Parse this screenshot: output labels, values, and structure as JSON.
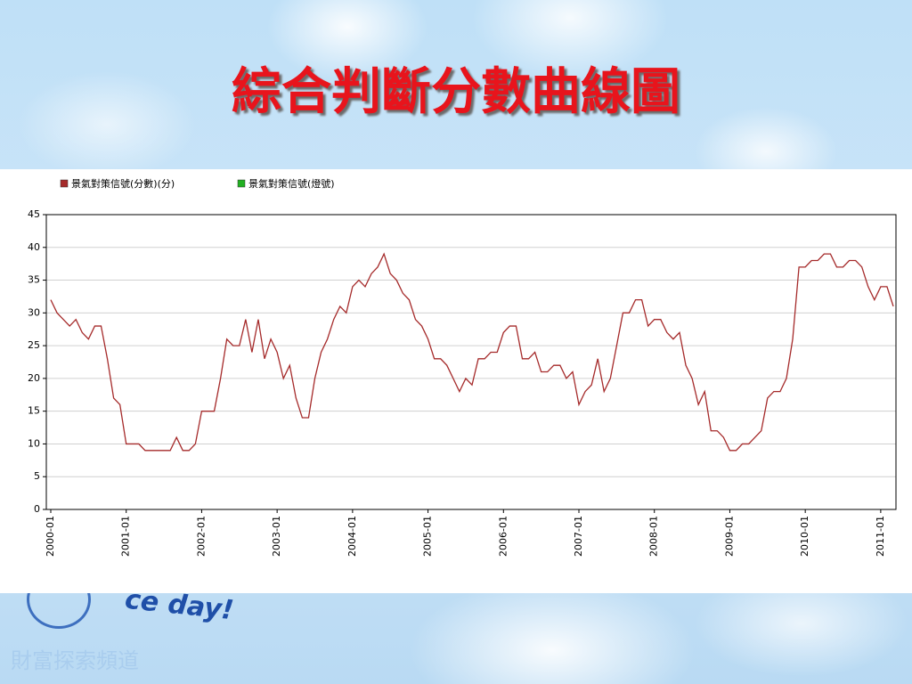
{
  "chart_data": {
    "type": "line",
    "title": "綜合判斷分數曲線圖",
    "categories": [
      "2000-01",
      null,
      null,
      null,
      null,
      null,
      null,
      null,
      null,
      null,
      null,
      null,
      "2001-01",
      null,
      null,
      null,
      null,
      null,
      null,
      null,
      null,
      null,
      null,
      null,
      "2002-01",
      null,
      null,
      null,
      null,
      null,
      null,
      null,
      null,
      null,
      null,
      null,
      "2003-01",
      null,
      null,
      null,
      null,
      null,
      null,
      null,
      null,
      null,
      null,
      null,
      "2004-01",
      null,
      null,
      null,
      null,
      null,
      null,
      null,
      null,
      null,
      null,
      null,
      "2005-01",
      null,
      null,
      null,
      null,
      null,
      null,
      null,
      null,
      null,
      null,
      null,
      "2006-01",
      null,
      null,
      null,
      null,
      null,
      null,
      null,
      null,
      null,
      null,
      null,
      "2007-01",
      null,
      null,
      null,
      null,
      null,
      null,
      null,
      null,
      null,
      null,
      null,
      "2008-01",
      null,
      null,
      null,
      null,
      null,
      null,
      null,
      null,
      null,
      null,
      null,
      "2009-01",
      null,
      null,
      null,
      null,
      null,
      null,
      null,
      null,
      null,
      null,
      null,
      "2010-01",
      null,
      null,
      null,
      null,
      null,
      null,
      null,
      null,
      null,
      null,
      null,
      "2011-01",
      null,
      null
    ],
    "series": [
      {
        "name": "景氣對策信號(分數)(分)",
        "color": "#a52a2a",
        "values": [
          32,
          30,
          29,
          28,
          29,
          27,
          26,
          28,
          28,
          23,
          17,
          16,
          10,
          10,
          10,
          9,
          9,
          9,
          9,
          9,
          11,
          9,
          9,
          10,
          15,
          15,
          15,
          20,
          26,
          25,
          25,
          29,
          24,
          29,
          23,
          26,
          24,
          20,
          22,
          17,
          14,
          14,
          20,
          24,
          26,
          29,
          31,
          30,
          34,
          35,
          34,
          36,
          37,
          39,
          36,
          35,
          33,
          32,
          29,
          28,
          26,
          23,
          23,
          22,
          20,
          18,
          20,
          19,
          23,
          23,
          24,
          24,
          27,
          28,
          28,
          23,
          23,
          24,
          21,
          21,
          22,
          22,
          20,
          21,
          16,
          18,
          19,
          23,
          18,
          20,
          25,
          30,
          30,
          32,
          32,
          28,
          29,
          29,
          27,
          26,
          27,
          22,
          20,
          16,
          18,
          12,
          12,
          11,
          9,
          9,
          10,
          10,
          11,
          12,
          17,
          18,
          18,
          20,
          26,
          37,
          37,
          38,
          38,
          39,
          39,
          37,
          37,
          38,
          38,
          37,
          34,
          32,
          34,
          34,
          31
        ]
      },
      {
        "name": "景氣對策信號(燈號)",
        "color": "#22b022",
        "values": [
          null,
          null,
          null,
          null,
          null,
          null,
          null,
          null,
          null,
          null,
          null,
          null,
          null,
          null,
          null,
          null,
          null,
          null,
          null,
          null,
          null,
          null,
          null,
          null,
          null,
          null,
          null,
          null,
          null,
          null,
          null,
          null,
          null,
          null,
          null,
          null,
          null,
          null,
          null,
          null,
          null,
          null,
          null,
          null,
          null,
          null,
          null,
          null,
          null,
          null,
          null,
          null,
          null,
          null,
          null,
          null,
          null,
          null,
          null,
          null,
          null,
          null,
          null,
          null,
          null,
          null,
          null,
          null,
          null,
          null,
          null,
          null,
          null,
          null,
          null,
          null,
          null,
          null,
          null,
          null,
          null,
          null,
          null,
          null,
          null,
          null,
          null,
          null,
          null,
          null,
          null,
          null,
          null,
          null,
          null,
          null,
          null,
          null,
          null,
          null,
          null,
          null,
          null,
          null,
          null,
          null,
          null,
          null,
          null,
          null,
          null,
          null,
          null,
          null,
          null,
          null,
          null,
          null,
          null,
          null,
          null,
          null,
          null,
          null,
          null,
          null,
          null,
          null,
          null,
          null,
          null,
          null,
          null,
          null,
          null
        ]
      }
    ],
    "ylim": [
      0,
      45
    ],
    "yticks": [
      0,
      5,
      10,
      15,
      20,
      25,
      30,
      35,
      40,
      45
    ],
    "grid": true
  },
  "logo": "ce day!",
  "footer": "財富探索頻道"
}
